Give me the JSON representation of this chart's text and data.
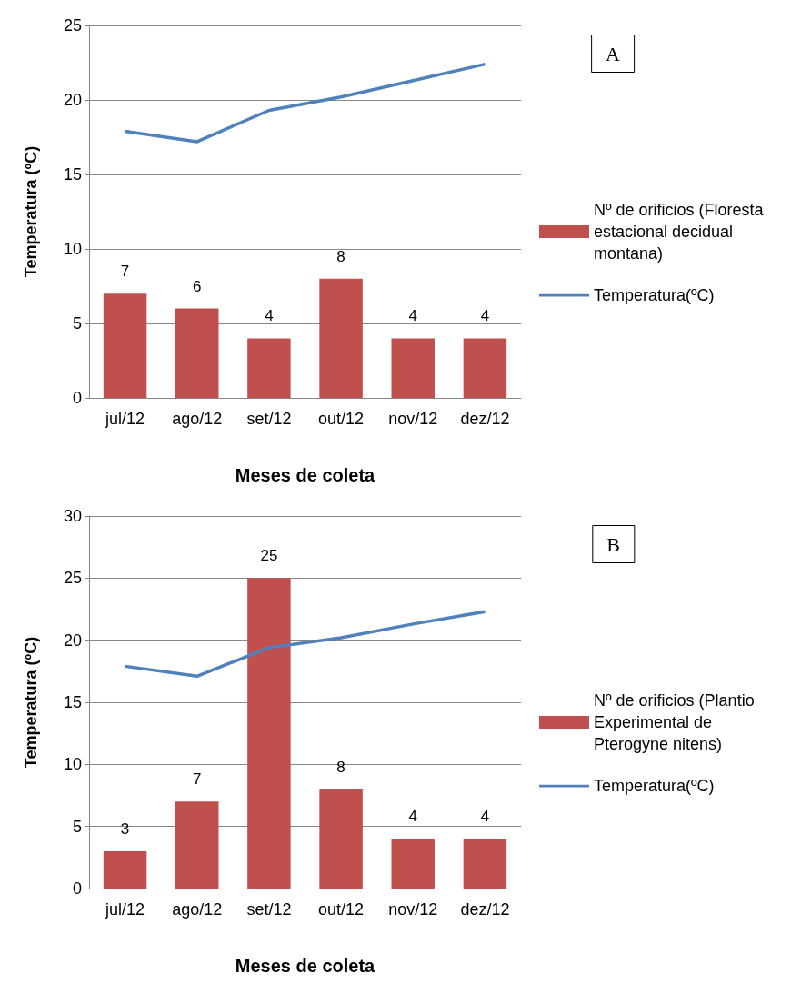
{
  "chart_data": [
    {
      "type": "bar",
      "xlabel": "Meses de coleta",
      "ylabel": "Temperatura (ºC)",
      "annotations": [
        "A"
      ],
      "categories": [
        "jul/12",
        "ago/12",
        "set/12",
        "out/12",
        "nov/12",
        "dez/12"
      ],
      "ylim": [
        0,
        25
      ],
      "yticks": [
        0,
        5,
        10,
        15,
        20,
        25
      ],
      "grid": "y",
      "legend": "right",
      "series": [
        {
          "name": "Nº de orificios (Floresta estacional decidual montana)",
          "color": "#c0504d",
          "values": [
            7,
            6,
            4,
            8,
            4,
            4
          ],
          "value_labels": [
            "7",
            "6",
            "4",
            "8",
            "4",
            "4"
          ]
        },
        {
          "name": "Temperatura(ºC)",
          "type": "line",
          "color": "#4f81bd",
          "values": [
            17.9,
            17.2,
            19.3,
            20.2,
            21.3,
            22.4
          ]
        }
      ]
    },
    {
      "type": "bar",
      "xlabel": "Meses de coleta",
      "ylabel": "Temperatura (ºC)",
      "annotations": [
        "B"
      ],
      "categories": [
        "jul/12",
        "ago/12",
        "set/12",
        "out/12",
        "nov/12",
        "dez/12"
      ],
      "ylim": [
        0,
        30
      ],
      "yticks": [
        0,
        5,
        10,
        15,
        20,
        25,
        30
      ],
      "grid": "y",
      "legend": "right",
      "series": [
        {
          "name": "Nº de orificios (Plantio Experimental de Pterogyne nitens)",
          "color": "#c0504d",
          "values": [
            3,
            7,
            25,
            8,
            4,
            4
          ],
          "value_labels": [
            "3",
            "7",
            "25",
            "8",
            "4",
            "4"
          ]
        },
        {
          "name": "Temperatura(ºC)",
          "type": "line",
          "color": "#4f81bd",
          "values": [
            17.9,
            17.1,
            19.4,
            20.2,
            21.3,
            22.3
          ]
        }
      ]
    }
  ]
}
